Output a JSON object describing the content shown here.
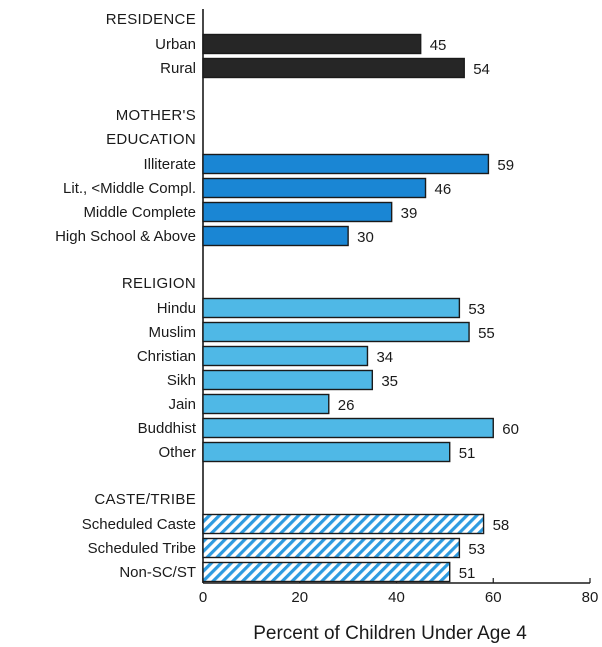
{
  "chart_data": {
    "type": "bar",
    "orientation": "horizontal",
    "xlabel": "Percent of Children Under Age 4",
    "xlim": [
      0,
      80
    ],
    "xticks": [
      0,
      20,
      40,
      60,
      80
    ],
    "grid": false,
    "groups": [
      {
        "title_lines": [
          "RESIDENCE"
        ],
        "color": "#262626",
        "pattern": "solid",
        "items": [
          {
            "label": "Urban",
            "value": 45
          },
          {
            "label": "Rural",
            "value": 54
          }
        ]
      },
      {
        "title_lines": [
          "MOTHER'S",
          "EDUCATION"
        ],
        "color": "#1a86d4",
        "pattern": "solid",
        "items": [
          {
            "label": "Illiterate",
            "value": 59
          },
          {
            "label": "Lit., <Middle Compl.",
            "value": 46
          },
          {
            "label": "Middle Complete",
            "value": 39
          },
          {
            "label": "High School & Above",
            "value": 30
          }
        ]
      },
      {
        "title_lines": [
          "RELIGION"
        ],
        "color": "#4fb8e6",
        "pattern": "solid",
        "items": [
          {
            "label": "Hindu",
            "value": 53
          },
          {
            "label": "Muslim",
            "value": 55
          },
          {
            "label": "Christian",
            "value": 34
          },
          {
            "label": "Sikh",
            "value": 35
          },
          {
            "label": "Jain",
            "value": 26
          },
          {
            "label": "Buddhist",
            "value": 60
          },
          {
            "label": "Other",
            "value": 51
          }
        ]
      },
      {
        "title_lines": [
          "CASTE/TRIBE"
        ],
        "color": "#2e9be0",
        "pattern": "hatched",
        "items": [
          {
            "label": "Scheduled Caste",
            "value": 58
          },
          {
            "label": "Scheduled Tribe",
            "value": 53
          },
          {
            "label": "Non-SC/ST",
            "value": 51
          }
        ]
      }
    ]
  }
}
